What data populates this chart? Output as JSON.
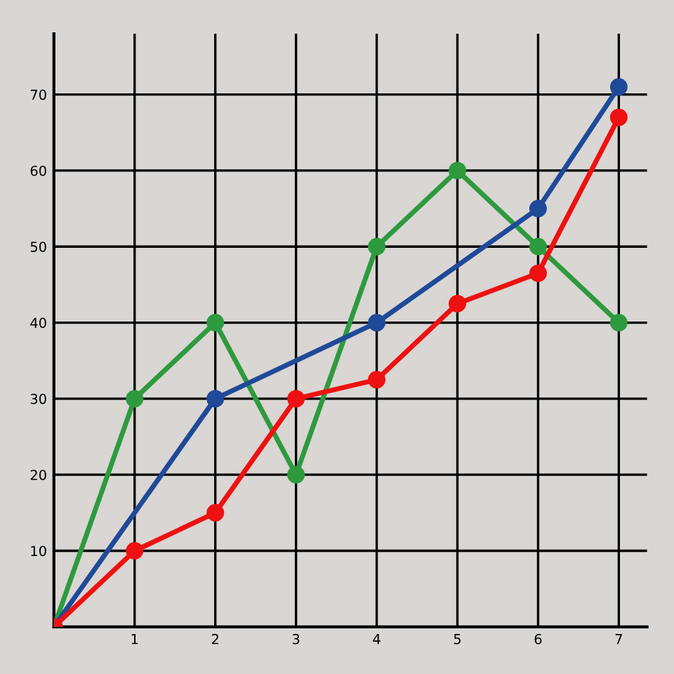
{
  "chart_data": {
    "type": "line",
    "xlim": [
      0,
      7.35
    ],
    "ylim": [
      0,
      78
    ],
    "xticks": [
      1,
      2,
      3,
      4,
      5,
      6,
      7
    ],
    "yticks": [
      10,
      20,
      30,
      40,
      50,
      60,
      70
    ],
    "grid": true,
    "marker": "circle",
    "line_style": "solid",
    "series": [
      {
        "color": "#2e9a3e",
        "x": [
          0,
          1,
          2,
          3,
          4,
          5,
          6,
          7
        ],
        "values": [
          0,
          30,
          40,
          20,
          50,
          60,
          50,
          40
        ]
      },
      {
        "color": "#1f4a99",
        "x": [
          0,
          2,
          4,
          6,
          7
        ],
        "values": [
          0,
          30,
          40,
          55,
          71
        ]
      },
      {
        "color": "#ee1111",
        "x": [
          0,
          1,
          2,
          3,
          4,
          5,
          6,
          7
        ],
        "values": [
          0,
          10,
          15,
          30,
          32.5,
          42.5,
          46.5,
          67
        ]
      }
    ]
  }
}
